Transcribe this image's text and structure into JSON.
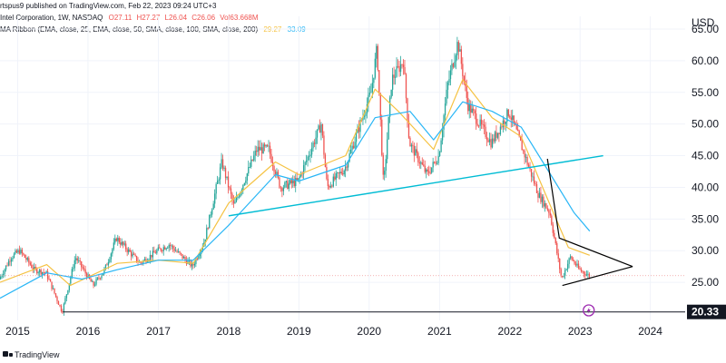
{
  "header": {
    "published": "rtspus9 published on TradingView.com, Feb 22, 2023 09:24 UTC+3",
    "symbol": "Intel Corporation, 1W, NASDAQ",
    "o": "O27.11",
    "h": "H27.27",
    "l": "L26.04",
    "c": "C26.06",
    "vol": "Vol63.668M",
    "indicator": "MA Ribbon (EMA, close, 25, EMA, close, 50, SMA, close, 100, SMA, close, 200)",
    "ma1_value": "29.27",
    "ma2_value": "33.09"
  },
  "currency": "USD",
  "footer": {
    "brand": "TradingView"
  },
  "colors": {
    "up": "#26a69a",
    "down": "#ef5350",
    "ma_fast": "#f5c242",
    "ma_slow": "#29b6f6",
    "trendline": "#00bcd4",
    "pattern": "#000000",
    "support": "#131722",
    "current_price_line": "#ef9a9a",
    "alert_icon": "#9c27b0"
  },
  "chart_data": {
    "type": "candlestick",
    "interval": "1W",
    "ylim": [
      19,
      67
    ],
    "xlim": [
      "2014-10-01",
      "2024-06-30"
    ],
    "y_ticks": [
      "65.00",
      "60.00",
      "55.00",
      "50.00",
      "45.00",
      "40.00",
      "35.00",
      "30.00",
      "25.00"
    ],
    "x_ticks": [
      "2015",
      "2016",
      "2017",
      "2018",
      "2019",
      "2020",
      "2021",
      "2022",
      "2023",
      "2024"
    ],
    "price_path": [
      [
        "2014-10-01",
        25.5
      ],
      [
        "2014-12-01",
        29.0
      ],
      [
        "2015-01-15",
        30.0
      ],
      [
        "2015-04-01",
        27.0
      ],
      [
        "2015-06-01",
        26.5
      ],
      [
        "2015-08-24",
        20.33
      ],
      [
        "2015-11-01",
        29.0
      ],
      [
        "2016-02-01",
        24.5
      ],
      [
        "2016-04-01",
        27.0
      ],
      [
        "2016-06-01",
        32.0
      ],
      [
        "2016-10-01",
        28.0
      ],
      [
        "2017-01-01",
        30.0
      ],
      [
        "2017-03-01",
        31.0
      ],
      [
        "2017-07-01",
        27.5
      ],
      [
        "2017-09-01",
        31.5
      ],
      [
        "2017-12-01",
        44.0
      ],
      [
        "2018-02-01",
        37.0
      ],
      [
        "2018-06-01",
        46.0
      ],
      [
        "2018-08-01",
        46.0
      ],
      [
        "2018-10-01",
        40.0
      ],
      [
        "2019-01-01",
        41.0
      ],
      [
        "2019-05-01",
        50.0
      ],
      [
        "2019-06-01",
        40.0
      ],
      [
        "2019-09-01",
        43.0
      ],
      [
        "2020-01-15",
        55.0
      ],
      [
        "2020-02-15",
        62.0
      ],
      [
        "2020-03-20",
        40.0
      ],
      [
        "2020-05-01",
        57.0
      ],
      [
        "2020-07-01",
        60.0
      ],
      [
        "2020-08-01",
        47.0
      ],
      [
        "2020-11-01",
        42.0
      ],
      [
        "2021-01-01",
        45.0
      ],
      [
        "2021-02-15",
        56.0
      ],
      [
        "2021-04-10",
        63.0
      ],
      [
        "2021-06-01",
        53.0
      ],
      [
        "2021-10-01",
        47.0
      ],
      [
        "2022-01-01",
        52.0
      ],
      [
        "2022-03-01",
        47.0
      ],
      [
        "2022-06-01",
        39.0
      ],
      [
        "2022-08-01",
        36.0
      ],
      [
        "2022-10-01",
        25.5
      ],
      [
        "2022-11-15",
        29.0
      ],
      [
        "2023-01-01",
        27.0
      ],
      [
        "2023-02-20",
        26.06
      ]
    ],
    "ma_fast": [
      [
        "2014-10-01",
        25.0
      ],
      [
        "2015-06-01",
        27.8
      ],
      [
        "2015-10-01",
        24.5
      ],
      [
        "2016-06-01",
        28.0
      ],
      [
        "2017-01-01",
        28.5
      ],
      [
        "2017-07-01",
        28.0
      ],
      [
        "2018-01-01",
        37.5
      ],
      [
        "2018-09-01",
        44.0
      ],
      [
        "2019-01-01",
        42.0
      ],
      [
        "2019-09-01",
        45.0
      ],
      [
        "2020-02-01",
        55.5
      ],
      [
        "2020-06-01",
        52.0
      ],
      [
        "2020-12-01",
        46.0
      ],
      [
        "2021-05-01",
        57.0
      ],
      [
        "2021-10-01",
        51.0
      ],
      [
        "2022-03-01",
        48.0
      ],
      [
        "2022-08-01",
        37.0
      ],
      [
        "2022-11-01",
        30.5
      ],
      [
        "2023-02-20",
        29.27
      ]
    ],
    "ma_slow": [
      [
        "2014-10-01",
        22.5
      ],
      [
        "2015-06-01",
        26.5
      ],
      [
        "2015-12-01",
        25.5
      ],
      [
        "2016-06-01",
        27.0
      ],
      [
        "2017-01-01",
        28.5
      ],
      [
        "2017-07-01",
        28.5
      ],
      [
        "2018-01-01",
        34.0
      ],
      [
        "2018-09-01",
        42.0
      ],
      [
        "2019-01-01",
        41.0
      ],
      [
        "2019-09-01",
        43.5
      ],
      [
        "2020-02-01",
        51.0
      ],
      [
        "2020-08-01",
        52.0
      ],
      [
        "2020-12-01",
        47.5
      ],
      [
        "2021-05-01",
        53.5
      ],
      [
        "2021-10-01",
        52.0
      ],
      [
        "2022-03-01",
        49.5
      ],
      [
        "2022-08-01",
        42.0
      ],
      [
        "2022-12-01",
        36.0
      ],
      [
        "2023-02-20",
        33.09
      ]
    ],
    "trendline": [
      [
        "2018-01-01",
        35.5
      ],
      [
        "2023-05-01",
        45.0
      ]
    ],
    "triangle": {
      "descending": [
        [
          "2022-07-15",
          44.5
        ],
        [
          "2022-09-15",
          32.0
        ],
        [
          "2023-10-01",
          27.5
        ]
      ],
      "ascending": [
        [
          "2022-10-01",
          24.5
        ],
        [
          "2023-10-01",
          27.5
        ]
      ]
    },
    "support_level": {
      "value": 20.33,
      "label": "20.33"
    },
    "current_price": 26.06
  }
}
